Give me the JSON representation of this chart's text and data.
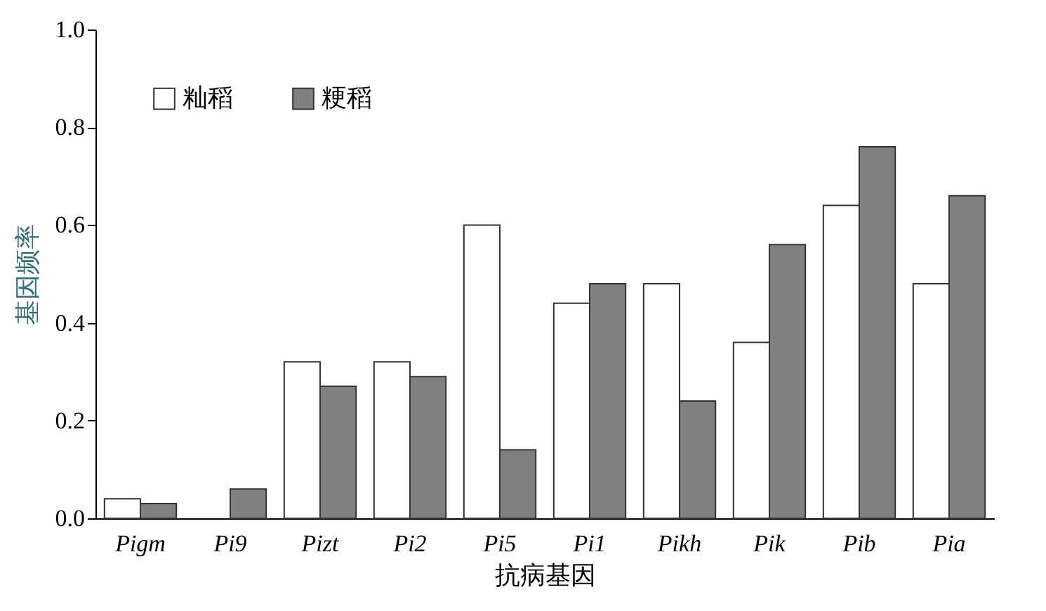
{
  "chart_data": {
    "type": "bar",
    "xlabel": "抗病基因",
    "ylabel": "基因频率",
    "categories": [
      "Pigm",
      "Pi9",
      "Pizt",
      "Pi2",
      "Pi5",
      "Pi1",
      "Pikh",
      "Pik",
      "Pib",
      "Pia"
    ],
    "series": [
      {
        "name": "籼稻",
        "color": "#ffffff",
        "values": [
          0.04,
          null,
          0.32,
          0.32,
          0.6,
          0.44,
          0.48,
          0.36,
          0.64,
          0.48
        ]
      },
      {
        "name": "粳稻",
        "color": "#808080",
        "values": [
          0.03,
          0.06,
          0.27,
          0.29,
          0.14,
          0.48,
          0.24,
          0.56,
          0.76,
          0.66
        ]
      }
    ],
    "ylim": [
      0,
      1
    ],
    "yticks": [
      {
        "value": 0,
        "label": "0.0"
      },
      {
        "value": 0.2,
        "label": "0.2"
      },
      {
        "value": 0.4,
        "label": "0.4"
      },
      {
        "value": 0.6,
        "label": "0.6"
      },
      {
        "value": 0.8,
        "label": "0.8"
      },
      {
        "value": 1,
        "label": "1.0"
      }
    ],
    "grid": false,
    "legend": "top left"
  }
}
